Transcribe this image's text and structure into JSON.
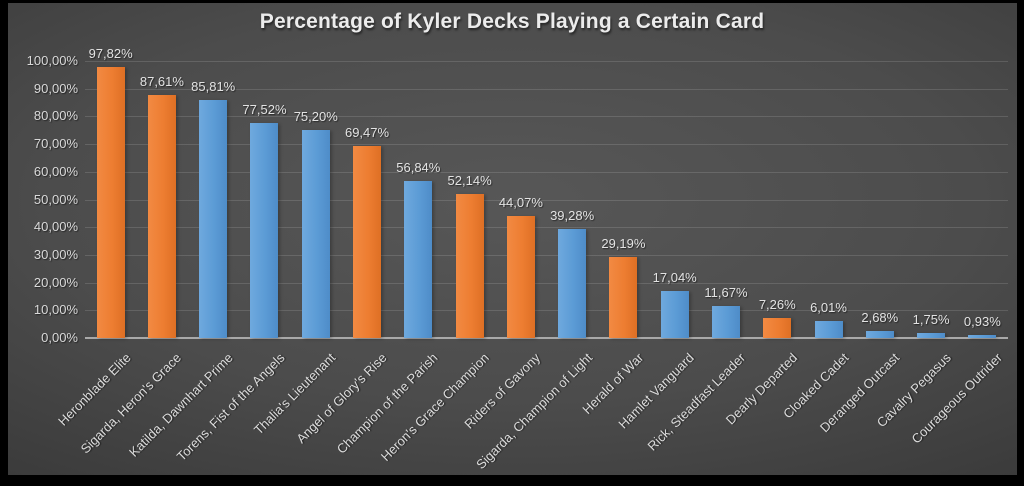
{
  "chart_data": {
    "type": "bar",
    "title": "Percentage of Kyler Decks Playing a Certain Card",
    "xlabel": "",
    "ylabel": "",
    "ylim": [
      0,
      100
    ],
    "grid": true,
    "legend_position": "none",
    "y_axis_ticks": [
      "100,00%",
      "90,00%",
      "80,00%",
      "70,00%",
      "60,00%",
      "50,00%",
      "40,00%",
      "30,00%",
      "20,00%",
      "10,00%",
      "0,00%"
    ],
    "y_axis_tick_values": [
      100,
      90,
      80,
      70,
      60,
      50,
      40,
      30,
      20,
      10,
      0
    ],
    "categories": [
      "Heronblade Elite",
      "Sigarda, Heron's Grace",
      "Katilda, Dawnhart Prime",
      "Torens, Fist of the Angels",
      "Thalia's Lieutenant",
      "Angel of Glory's Rise",
      "Champion of the Parish",
      "Heron's Grace Champion",
      "Riders of Gavony",
      "Sigarda, Champion of Light",
      "Herald of War",
      "Hamlet Vanguard",
      "Rick, Steadfast Leader",
      "Dearly Departed",
      "Cloaked Cadet",
      "Deranged Outcast",
      "Cavalry Pegasus",
      "Courageous Outrider"
    ],
    "values": [
      97.82,
      87.61,
      85.81,
      77.52,
      75.2,
      69.47,
      56.84,
      52.14,
      44.07,
      39.28,
      29.19,
      17.04,
      11.67,
      7.26,
      6.01,
      2.68,
      1.75,
      0.93
    ],
    "value_labels": [
      "97,82%",
      "87,61%",
      "85,81%",
      "77,52%",
      "75,20%",
      "69,47%",
      "56,84%",
      "52,14%",
      "44,07%",
      "39,28%",
      "29,19%",
      "17,04%",
      "11,67%",
      "7,26%",
      "6,01%",
      "2,68%",
      "1,75%",
      "0,93%"
    ],
    "bar_colors": [
      "orange",
      "orange",
      "blue",
      "blue",
      "blue",
      "orange",
      "blue",
      "orange",
      "orange",
      "blue",
      "orange",
      "blue",
      "blue",
      "orange",
      "blue",
      "blue",
      "blue",
      "blue"
    ],
    "palette": {
      "orange": "#ED7D31",
      "blue": "#5B9BD5"
    },
    "colors": {
      "background_center": "#575757",
      "background_edge": "#242424",
      "frame": "#000000",
      "text": "#D9D9D9",
      "gridline": "rgba(255,255,255,0.13)",
      "axis_line": "#A9A9A9"
    }
  }
}
